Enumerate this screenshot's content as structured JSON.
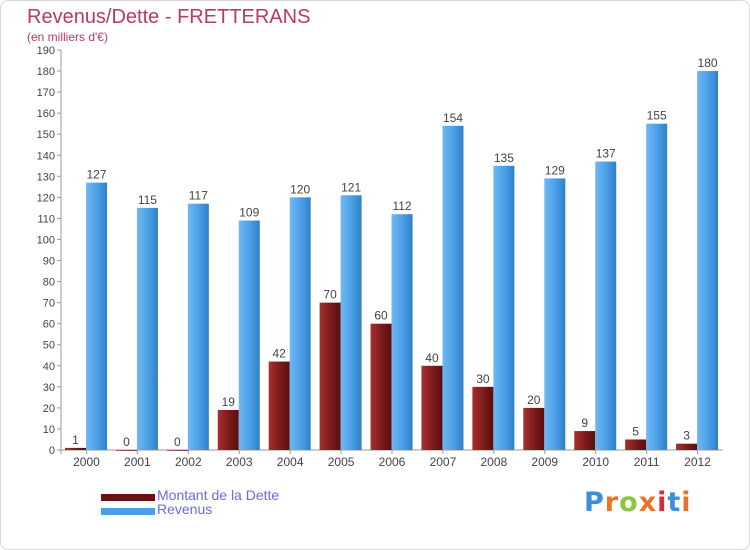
{
  "title": "Revenus/Dette - FRETTERANS",
  "subtitle": "(en milliers d'€)",
  "brand": {
    "text": "Proxiti",
    "colors": [
      "#3a8fd8",
      "#e8742a",
      "#8cc63e",
      "#e8742a",
      "#d03030",
      "#3a8fd8",
      "#e8742a"
    ]
  },
  "colors": {
    "debt": "#7a1a1a",
    "revenue": "#4a9ee6",
    "title": "#b8386a",
    "legend_text": "#6a6ae8"
  },
  "chart_data": {
    "type": "bar",
    "categories": [
      "2000",
      "2001",
      "2002",
      "2003",
      "2004",
      "2005",
      "2006",
      "2007",
      "2008",
      "2009",
      "2010",
      "2011",
      "2012"
    ],
    "series": [
      {
        "name": "Montant de la Dette",
        "values": [
          1,
          0,
          0,
          19,
          42,
          70,
          60,
          40,
          30,
          20,
          9,
          5,
          3
        ]
      },
      {
        "name": "Revenus",
        "values": [
          127,
          115,
          117,
          109,
          120,
          121,
          112,
          154,
          135,
          129,
          137,
          155,
          180
        ]
      }
    ],
    "ylim": [
      0,
      190
    ],
    "yticks": [
      0,
      10,
      20,
      30,
      40,
      50,
      60,
      70,
      80,
      90,
      100,
      110,
      120,
      130,
      140,
      150,
      160,
      170,
      180,
      190
    ],
    "grid": false,
    "legend": "bottom-left"
  }
}
